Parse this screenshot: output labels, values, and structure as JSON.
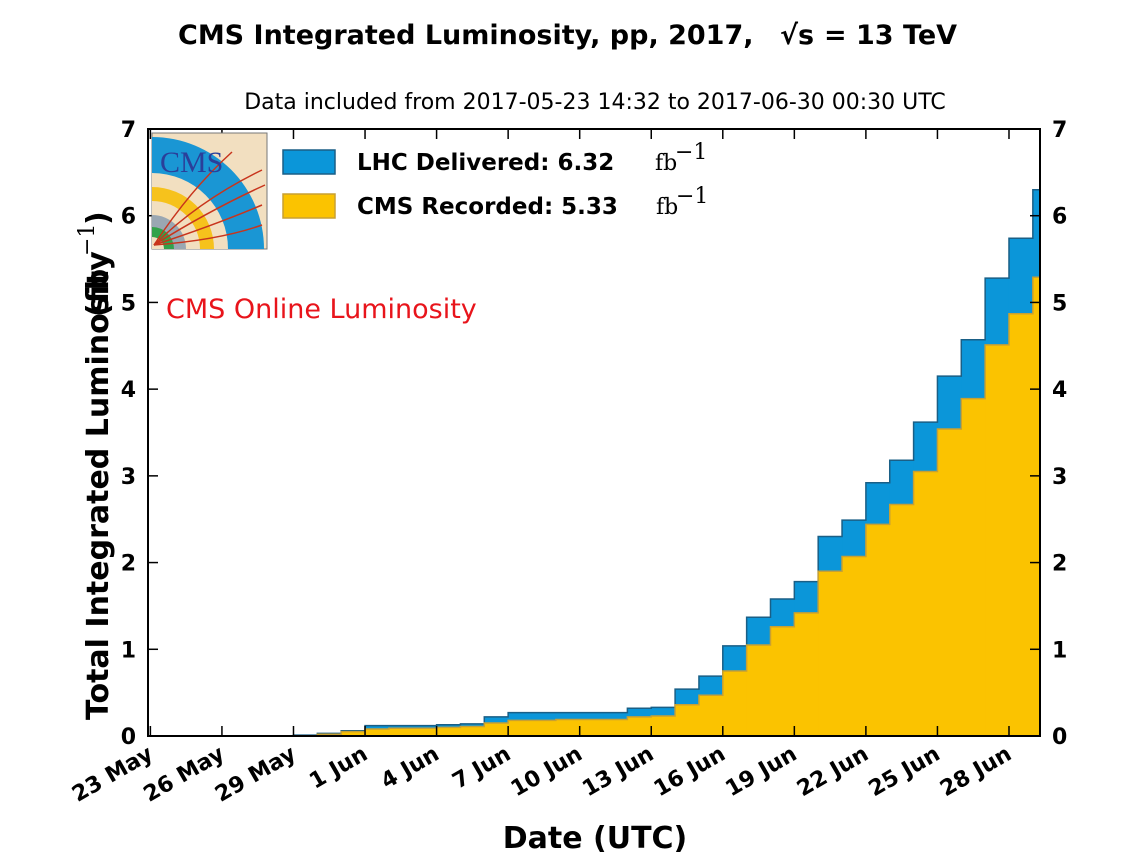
{
  "chart_data": {
    "type": "area",
    "title": "CMS Integrated Luminosity, pp, 2017,",
    "title_sqrt": "√s",
    "title_energy": "= 13 TeV",
    "subtitle": "Data included from 2017-05-23 14:32 to 2017-06-30 00:30 UTC",
    "xlabel": "Date (UTC)",
    "ylabel": "Total Integrated Luminosity",
    "ylabel_unit": "(fb",
    "ylabel_unit_exp": "−1",
    "ylabel_unit_close": ")",
    "annotation": "CMS Online Luminosity",
    "annotation_color": "#e8141b",
    "ylim": [
      0,
      7
    ],
    "y_ticks": [
      0,
      1,
      2,
      3,
      4,
      5,
      6,
      7
    ],
    "x_range_days": [
      -0.1,
      37.3
    ],
    "x_ticks": [
      {
        "day": 0,
        "label": "23 May"
      },
      {
        "day": 3,
        "label": "26 May"
      },
      {
        "day": 6,
        "label": "29 May"
      },
      {
        "day": 9,
        "label": "1 Jun"
      },
      {
        "day": 12,
        "label": "4 Jun"
      },
      {
        "day": 15,
        "label": "7 Jun"
      },
      {
        "day": 18,
        "label": "10 Jun"
      },
      {
        "day": 21,
        "label": "13 Jun"
      },
      {
        "day": 24,
        "label": "16 Jun"
      },
      {
        "day": 27,
        "label": "19 Jun"
      },
      {
        "day": 30,
        "label": "22 Jun"
      },
      {
        "day": 33,
        "label": "25 Jun"
      },
      {
        "day": 36,
        "label": "28 Jun"
      }
    ],
    "grid": false,
    "legend_position": "top-left",
    "series": [
      {
        "name": "LHC Delivered: 6.32",
        "unit": "fb",
        "unit_exp": "−1",
        "color": "#0b96d9",
        "edge_color": "#1a5f86",
        "values": [
          0.0,
          0.0,
          0.0,
          0.0,
          0.0,
          0.0,
          0.01,
          0.03,
          0.06,
          0.12,
          0.12,
          0.12,
          0.13,
          0.14,
          0.22,
          0.27,
          0.27,
          0.27,
          0.27,
          0.27,
          0.32,
          0.33,
          0.54,
          0.69,
          1.04,
          1.37,
          1.58,
          1.78,
          2.3,
          2.49,
          2.92,
          3.18,
          3.62,
          4.15,
          4.57,
          5.28,
          5.74,
          6.3,
          6.32
        ]
      },
      {
        "name": "CMS Recorded: 5.33",
        "unit": "fb",
        "unit_exp": "−1",
        "color": "#fbc300",
        "edge_color": "#c8a032",
        "values": [
          0.0,
          0.0,
          0.0,
          0.0,
          0.0,
          0.0,
          0.0,
          0.02,
          0.05,
          0.08,
          0.09,
          0.09,
          0.1,
          0.11,
          0.15,
          0.18,
          0.18,
          0.19,
          0.19,
          0.19,
          0.22,
          0.23,
          0.36,
          0.47,
          0.75,
          1.05,
          1.26,
          1.42,
          1.9,
          2.07,
          2.44,
          2.67,
          3.05,
          3.54,
          3.89,
          4.51,
          4.87,
          5.29,
          5.33
        ]
      }
    ]
  }
}
